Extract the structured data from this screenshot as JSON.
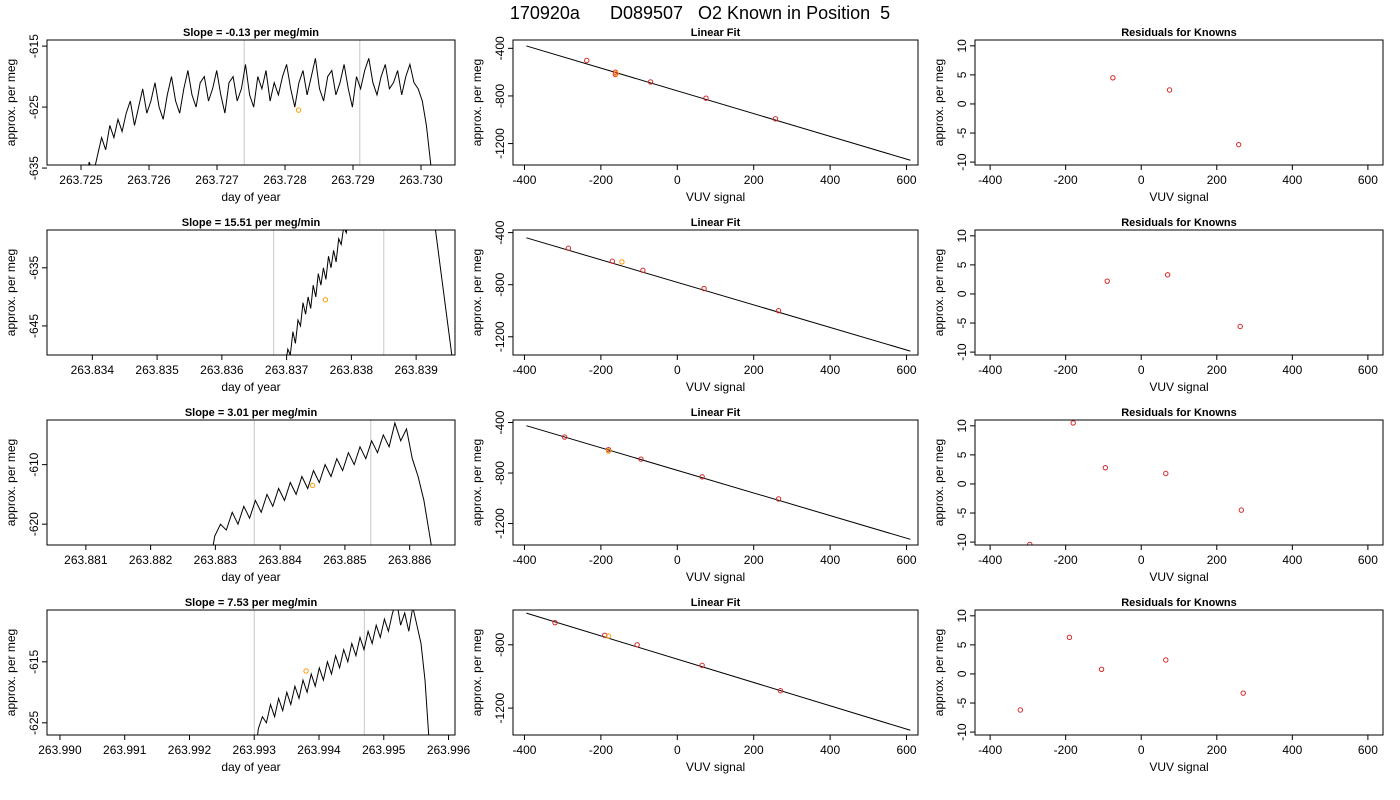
{
  "page": {
    "main_title": "170920a      D089507   O2 Known in Position  5"
  },
  "colors": {
    "line": "#000000",
    "points": "#d62728",
    "highlight": "#ff9900",
    "vline": "#c8c8c8"
  },
  "chart_data": [
    {
      "type": "line",
      "row": 0,
      "kind": "time",
      "title": "Slope =  -0.13  per meg/min",
      "xlabel": "day of year",
      "ylabel": "approx. per meg",
      "xlim": [
        263.7245,
        263.7305
      ],
      "ylim": [
        -634.5,
        -614.0
      ],
      "xticks": [
        263.725,
        263.726,
        263.727,
        263.728,
        263.729,
        263.73
      ],
      "xtick_labels": [
        "263.725",
        "263.726",
        "263.727",
        "263.728",
        "263.729",
        "263.730"
      ],
      "yticks": [
        -615,
        -625,
        -635
      ],
      "ytick_labels": [
        "-615",
        "-625",
        "-635"
      ],
      "vlines": [
        263.7274,
        263.7291
      ],
      "highlight_point": [
        263.7282,
        -625.5
      ],
      "series_x_range": [
        263.725,
        263.7302
      ],
      "series": [
        -645,
        -638,
        -634,
        -636,
        -633,
        -630,
        -632,
        -628,
        -630,
        -627,
        -629,
        -626,
        -624,
        -628,
        -625,
        -622,
        -626,
        -624,
        -621,
        -625,
        -627,
        -623,
        -620,
        -624,
        -626,
        -622,
        -619,
        -623,
        -625,
        -621,
        -620,
        -624,
        -622,
        -619,
        -623,
        -626,
        -621,
        -620,
        -624,
        -622,
        -618,
        -623,
        -625,
        -620,
        -622,
        -619,
        -624,
        -621,
        -623,
        -620,
        -618,
        -622,
        -625,
        -621,
        -619,
        -623,
        -620,
        -617,
        -622,
        -624,
        -620,
        -619,
        -623,
        -621,
        -618,
        -622,
        -625,
        -620,
        -622,
        -619,
        -617,
        -621,
        -623,
        -620,
        -618,
        -622,
        -621,
        -619,
        -623,
        -620,
        -618,
        -621,
        -622,
        -624,
        -628,
        -634,
        -640
      ]
    },
    {
      "type": "scatter",
      "row": 0,
      "kind": "fit",
      "title": "Linear Fit",
      "xlabel": "VUV signal",
      "ylabel": "approx. per meg",
      "xlim": [
        -430,
        630
      ],
      "ylim": [
        -1380,
        -330
      ],
      "xticks": [
        -400,
        -200,
        0,
        200,
        400,
        600
      ],
      "xtick_labels": [
        "-400",
        "-200",
        "0",
        "200",
        "400",
        "600"
      ],
      "yticks": [
        -400,
        -800,
        -1200
      ],
      "ytick_labels": [
        "-400",
        "-800",
        "-1200"
      ],
      "fit_line": [
        [
          -395,
          -380
        ],
        [
          610,
          -1340
        ]
      ],
      "points": [
        [
          -237,
          -502
        ],
        [
          -162,
          -600
        ],
        [
          -162,
          -620
        ],
        [
          -70,
          -682
        ],
        [
          75,
          -819
        ],
        [
          257,
          -992
        ]
      ],
      "highlight": [
        [
          -160,
          -612
        ]
      ]
    },
    {
      "type": "scatter",
      "row": 0,
      "kind": "resid",
      "title": "Residuals for Knowns",
      "xlabel": "VUV signal",
      "ylabel": "approx. per meg",
      "xlim": [
        -440,
        640
      ],
      "ylim": [
        -10.5,
        11
      ],
      "xticks": [
        -400,
        -200,
        0,
        200,
        400,
        600
      ],
      "xtick_labels": [
        "-400",
        "-200",
        "0",
        "200",
        "400",
        "600"
      ],
      "yticks": [
        10,
        5,
        0,
        -5,
        -10
      ],
      "ytick_labels": [
        "10",
        "5",
        "0",
        "-5",
        "-10"
      ],
      "points": [
        [
          -75,
          4.5
        ],
        [
          75,
          2.4
        ],
        [
          258,
          -7.0
        ]
      ]
    },
    {
      "type": "line",
      "row": 1,
      "kind": "time",
      "title": "Slope =  15.51  per meg/min",
      "xlabel": "day of year",
      "ylabel": "approx. per meg",
      "xlim": [
        263.8333,
        263.8396
      ],
      "ylim": [
        -650.0,
        -628.5
      ],
      "xticks": [
        263.834,
        263.835,
        263.836,
        263.837,
        263.838,
        263.839
      ],
      "xtick_labels": [
        "263.834",
        "263.835",
        "263.836",
        "263.837",
        "263.838",
        "263.839"
      ],
      "yticks": [
        -635,
        -645
      ],
      "ytick_labels": [
        "-635",
        "-645"
      ],
      "vlines": [
        263.8368,
        263.8385
      ],
      "highlight_point": [
        263.8376,
        -640.5
      ],
      "series_x_range": [
        263.8369,
        263.838
      ],
      "series": [
        -662,
        -656,
        -652,
        -649,
        -650,
        -646,
        -648,
        -644,
        -645,
        -641,
        -643,
        -640,
        -642,
        -638,
        -640,
        -636,
        -638,
        -635,
        -637,
        -633,
        -635,
        -632,
        -634,
        -630,
        -631,
        -628,
        -629,
        -626,
        -624
      ],
      "series2_x_range": [
        263.8392,
        263.83955
      ],
      "series2": [
        -620,
        -635,
        -650
      ]
    },
    {
      "type": "scatter",
      "row": 1,
      "kind": "fit",
      "title": "Linear Fit",
      "xlabel": "VUV signal",
      "ylabel": "approx. per meg",
      "xlim": [
        -430,
        630
      ],
      "ylim": [
        -1340,
        -380
      ],
      "xticks": [
        -400,
        -200,
        0,
        200,
        400,
        600
      ],
      "xtick_labels": [
        "-400",
        "-200",
        "0",
        "200",
        "400",
        "600"
      ],
      "yticks": [
        -400,
        -800,
        -1200
      ],
      "ytick_labels": [
        "-400",
        "-800",
        "-1200"
      ],
      "fit_line": [
        [
          -395,
          -440
        ],
        [
          610,
          -1310
        ]
      ],
      "points": [
        [
          -285,
          -520
        ],
        [
          -170,
          -620
        ],
        [
          -90,
          -690
        ],
        [
          70,
          -830
        ],
        [
          265,
          -1000
        ]
      ],
      "highlight": [
        [
          -145,
          -625
        ]
      ]
    },
    {
      "type": "scatter",
      "row": 1,
      "kind": "resid",
      "title": "Residuals for Knowns",
      "xlabel": "VUV signal",
      "ylabel": "approx. per meg",
      "xlim": [
        -440,
        640
      ],
      "ylim": [
        -10.5,
        11
      ],
      "xticks": [
        -400,
        -200,
        0,
        200,
        400,
        600
      ],
      "xtick_labels": [
        "-400",
        "-200",
        "0",
        "200",
        "400",
        "600"
      ],
      "yticks": [
        10,
        5,
        0,
        -5,
        -10
      ],
      "ytick_labels": [
        "10",
        "5",
        "0",
        "-5",
        "-10"
      ],
      "points": [
        [
          -90,
          2.2
        ],
        [
          70,
          3.3
        ],
        [
          262,
          -5.6
        ]
      ]
    },
    {
      "type": "line",
      "row": 2,
      "kind": "time",
      "title": "Slope =  3.01  per meg/min",
      "xlabel": "day of year",
      "ylabel": "approx. per meg",
      "xlim": [
        263.8804,
        263.8867
      ],
      "ylim": [
        -623.5,
        -602.5
      ],
      "xticks": [
        263.881,
        263.882,
        263.883,
        263.884,
        263.885,
        263.886
      ],
      "xtick_labels": [
        "263.881",
        "263.882",
        "263.883",
        "263.884",
        "263.885",
        "263.886"
      ],
      "yticks": [
        -610,
        -620
      ],
      "ytick_labels": [
        "-610",
        "-620"
      ],
      "vlines": [
        263.8836,
        263.8854
      ],
      "highlight_point": [
        263.8845,
        -613.5
      ],
      "series_x_range": [
        263.8829,
        263.8864
      ],
      "series": [
        -628,
        -622,
        -620,
        -621,
        -618,
        -620,
        -617,
        -619,
        -616,
        -618,
        -615,
        -617,
        -614,
        -616,
        -613,
        -615,
        -612,
        -614,
        -611,
        -613,
        -610,
        -612,
        -609,
        -611,
        -608,
        -610,
        -607,
        -609,
        -606,
        -608,
        -605,
        -607,
        -603,
        -606,
        -604,
        -609,
        -612,
        -616,
        -622,
        -628
      ]
    },
    {
      "type": "scatter",
      "row": 2,
      "kind": "fit",
      "title": "Linear Fit",
      "xlabel": "VUV signal",
      "ylabel": "approx. per meg",
      "xlim": [
        -430,
        630
      ],
      "ylim": [
        -1370,
        -380
      ],
      "xticks": [
        -400,
        -200,
        0,
        200,
        400,
        600
      ],
      "xtick_labels": [
        "-400",
        "-200",
        "0",
        "200",
        "400",
        "600"
      ],
      "yticks": [
        -400,
        -800,
        -1200
      ],
      "ytick_labels": [
        "-400",
        "-800",
        "-1200"
      ],
      "fit_line": [
        [
          -395,
          -425
        ],
        [
          610,
          -1325
        ]
      ],
      "points": [
        [
          -295,
          -515
        ],
        [
          -180,
          -615
        ],
        [
          -95,
          -690
        ],
        [
          65,
          -830
        ],
        [
          265,
          -1005
        ]
      ],
      "highlight": [
        [
          -180,
          -625
        ]
      ]
    },
    {
      "type": "scatter",
      "row": 2,
      "kind": "resid",
      "title": "Residuals for Knowns",
      "xlabel": "VUV signal",
      "ylabel": "approx. per meg",
      "xlim": [
        -440,
        640
      ],
      "ylim": [
        -10.5,
        11
      ],
      "xticks": [
        -400,
        -200,
        0,
        200,
        400,
        600
      ],
      "xtick_labels": [
        "-400",
        "-200",
        "0",
        "200",
        "400",
        "600"
      ],
      "yticks": [
        10,
        5,
        0,
        -5,
        -10
      ],
      "ytick_labels": [
        "10",
        "5",
        "0",
        "-5",
        "-10"
      ],
      "points": [
        [
          -180,
          10.5
        ],
        [
          -95,
          2.8
        ],
        [
          65,
          1.8
        ],
        [
          265,
          -4.5
        ],
        [
          -295,
          -10.4
        ]
      ]
    },
    {
      "type": "line",
      "row": 3,
      "kind": "time",
      "title": "Slope =  7.53  per meg/min",
      "xlabel": "day of year",
      "ylabel": "approx. per meg",
      "xlim": [
        263.9898,
        263.9961
      ],
      "ylim": [
        -627.0,
        -606.5
      ],
      "xticks": [
        263.99,
        263.991,
        263.992,
        263.993,
        263.994,
        263.995,
        263.996
      ],
      "xtick_labels": [
        "263.990",
        "263.991",
        "263.992",
        "263.993",
        "263.994",
        "263.995",
        "263.996"
      ],
      "yticks": [
        -615,
        -625
      ],
      "ytick_labels": [
        "-615",
        "-625"
      ],
      "vlines": [
        263.993,
        263.9947
      ],
      "highlight_point": [
        263.9938,
        -616.5
      ],
      "series_x_range": [
        263.993,
        263.9957
      ],
      "series": [
        -632,
        -626,
        -624,
        -625,
        -622,
        -624,
        -621,
        -623,
        -620,
        -622,
        -619,
        -621,
        -618,
        -620,
        -617,
        -619,
        -616,
        -618,
        -615,
        -617,
        -614,
        -616,
        -613,
        -615,
        -612,
        -614,
        -611,
        -613,
        -610,
        -612,
        -609,
        -611,
        -608,
        -610,
        -607,
        -605,
        -609,
        -607,
        -610,
        -606,
        -609,
        -612,
        -618,
        -628
      ]
    },
    {
      "type": "scatter",
      "row": 3,
      "kind": "fit",
      "title": "Linear Fit",
      "xlabel": "VUV signal",
      "ylabel": "approx. per meg",
      "xlim": [
        -430,
        630
      ],
      "ylim": [
        -1370,
        -580
      ],
      "xticks": [
        -400,
        -200,
        0,
        200,
        400,
        600
      ],
      "xtick_labels": [
        "-400",
        "-200",
        "0",
        "200",
        "400",
        "600"
      ],
      "yticks": [
        -800,
        -1200
      ],
      "ytick_labels": [
        "-800",
        "-1200"
      ],
      "fit_line": [
        [
          -395,
          -600
        ],
        [
          610,
          -1340
        ]
      ],
      "points": [
        [
          -320,
          -660
        ],
        [
          -190,
          -740
        ],
        [
          -105,
          -800
        ],
        [
          65,
          -930
        ],
        [
          270,
          -1090
        ]
      ],
      "highlight": [
        [
          -180,
          -745
        ]
      ]
    },
    {
      "type": "scatter",
      "row": 3,
      "kind": "resid",
      "title": "Residuals for Knowns",
      "xlabel": "VUV signal",
      "ylabel": "approx. per meg",
      "xlim": [
        -440,
        640
      ],
      "ylim": [
        -10.5,
        11
      ],
      "xticks": [
        -400,
        -200,
        0,
        200,
        400,
        600
      ],
      "xtick_labels": [
        "-400",
        "-200",
        "0",
        "200",
        "400",
        "600"
      ],
      "yticks": [
        10,
        5,
        0,
        -5,
        -10
      ],
      "ytick_labels": [
        "10",
        "5",
        "0",
        "-5",
        "-10"
      ],
      "points": [
        [
          -320,
          -6.2
        ],
        [
          -190,
          6.3
        ],
        [
          -105,
          0.8
        ],
        [
          65,
          2.4
        ],
        [
          270,
          -3.3
        ]
      ]
    }
  ]
}
